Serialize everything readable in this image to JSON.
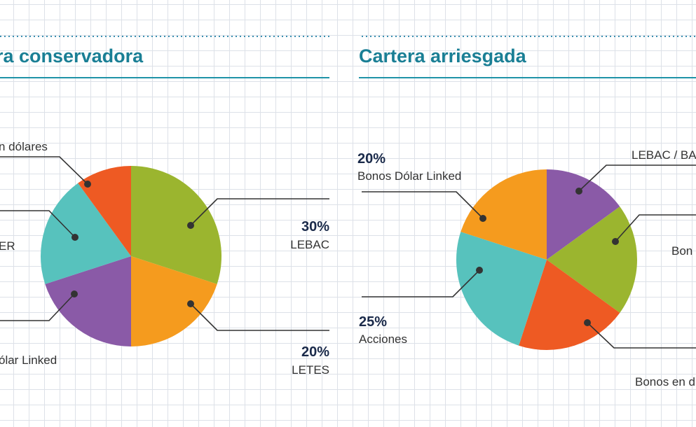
{
  "colors": {
    "title": "#1a7f95",
    "rule": "#1f93a8",
    "dotted": "#3a8fb0",
    "pct": "#1a2a4a",
    "label": "#333333",
    "leader": "#333333"
  },
  "chart_data": [
    {
      "type": "pie",
      "title": "ra conservadora",
      "slices": [
        {
          "name": "LEBAC",
          "pct_text": "30%",
          "value": 30,
          "color": "#9bb52f"
        },
        {
          "name": "LETES",
          "pct_text": "20%",
          "value": 20,
          "color": "#f59b1e"
        },
        {
          "name": "ólar Linked",
          "pct_text": "",
          "value": 20,
          "color": "#8a5aa7"
        },
        {
          "name": "ER",
          "pct_text": "",
          "value": 20,
          "color": "#57c2bd"
        },
        {
          "name": "n dólares",
          "pct_text": "",
          "value": 10,
          "color": "#ee5a23"
        }
      ]
    },
    {
      "type": "pie",
      "title": "Cartera arriesgada",
      "slices": [
        {
          "name": "LEBAC / BA",
          "pct_text": "",
          "value": 15,
          "color": "#8a5aa7"
        },
        {
          "name": "Bon",
          "pct_text": "",
          "value": 20,
          "color": "#9bb52f"
        },
        {
          "name": "Bonos en d",
          "pct_text": "",
          "value": 20,
          "color": "#ee5a23"
        },
        {
          "name": "Acciones",
          "pct_text": "25%",
          "value": 25,
          "color": "#57c2bd"
        },
        {
          "name": "Bonos Dólar Linked",
          "pct_text": "20%",
          "value": 20,
          "color": "#f59b1e"
        }
      ]
    }
  ]
}
